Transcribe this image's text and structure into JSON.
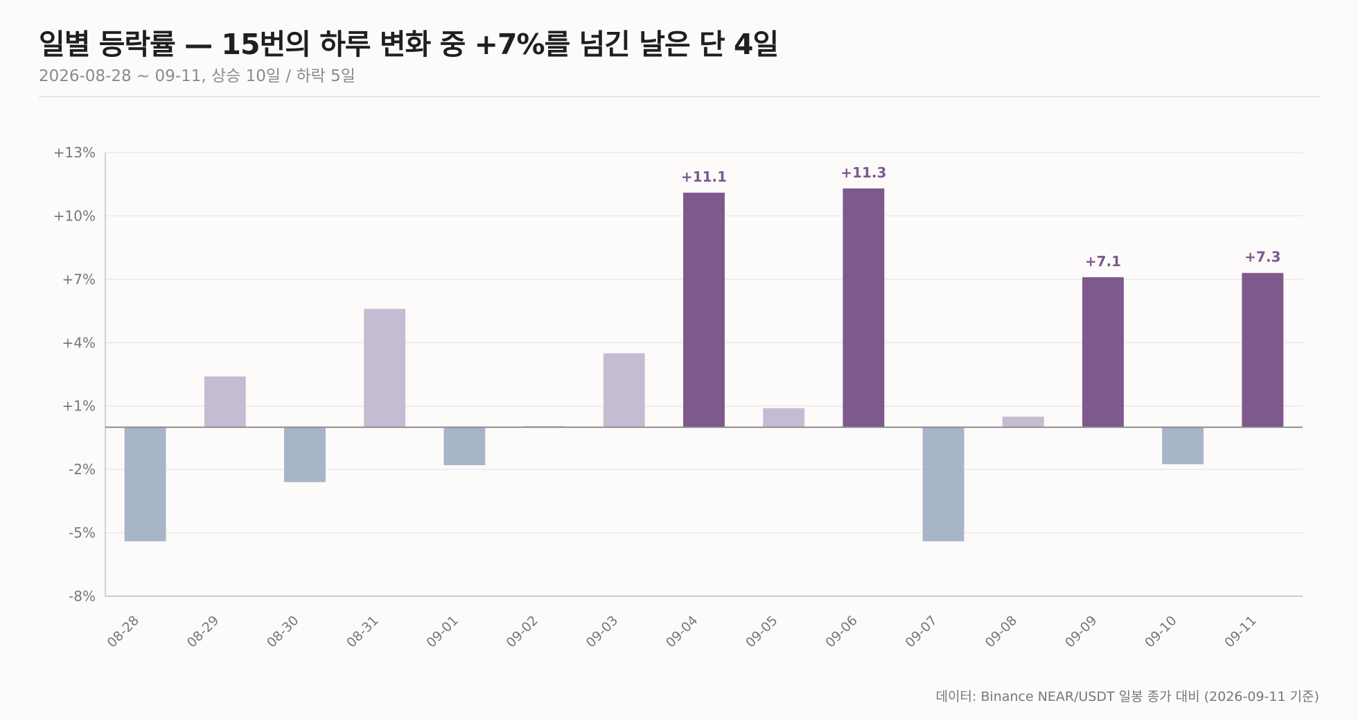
{
  "title": "일별 등락률 — 15번의 하루 변화 중 +7%를 넘긴 날은 단 4일",
  "subtitle": "2026-08-28 ~ 09-11, 상승 10일 / 하락 5일",
  "footnote": "데이터: Binance NEAR/USDT 일봉 종가 대비 (2026-09-11 기준)",
  "colors": {
    "highlight": "#7e598d",
    "up": "#c6bcd2",
    "down": "#a8b4c8",
    "zero_line": "#8c8c8c",
    "grid": "#e8e6e4",
    "axis_text": "#777777",
    "label_text": "#7e598d"
  },
  "chart_data": {
    "type": "bar",
    "categories": [
      "08-28",
      "08-29",
      "08-30",
      "08-31",
      "09-01",
      "09-02",
      "09-03",
      "09-04",
      "09-05",
      "09-06",
      "09-07",
      "09-08",
      "09-09",
      "09-10",
      "09-11"
    ],
    "values": [
      -5.4,
      2.4,
      -2.6,
      5.6,
      -1.8,
      0.05,
      3.5,
      11.1,
      0.9,
      11.3,
      -5.4,
      0.5,
      7.1,
      -1.75,
      7.3
    ],
    "value_labels": [
      "",
      "",
      "",
      "",
      "",
      "",
      "",
      "+11.1",
      "",
      "+11.3",
      "",
      "",
      "+7.1",
      "",
      "+7.3"
    ],
    "highlight_threshold": 7,
    "ylim": [
      -8,
      13
    ],
    "yticks": [
      13,
      10,
      7,
      4,
      1,
      -2,
      -5,
      -8
    ],
    "ytick_labels": [
      "+13%",
      "+10%",
      "+7%",
      "+4%",
      "+1%",
      "-2%",
      "-5%",
      "-8%"
    ],
    "xlabel": "",
    "ylabel": "",
    "grid": true,
    "legend": "none"
  }
}
